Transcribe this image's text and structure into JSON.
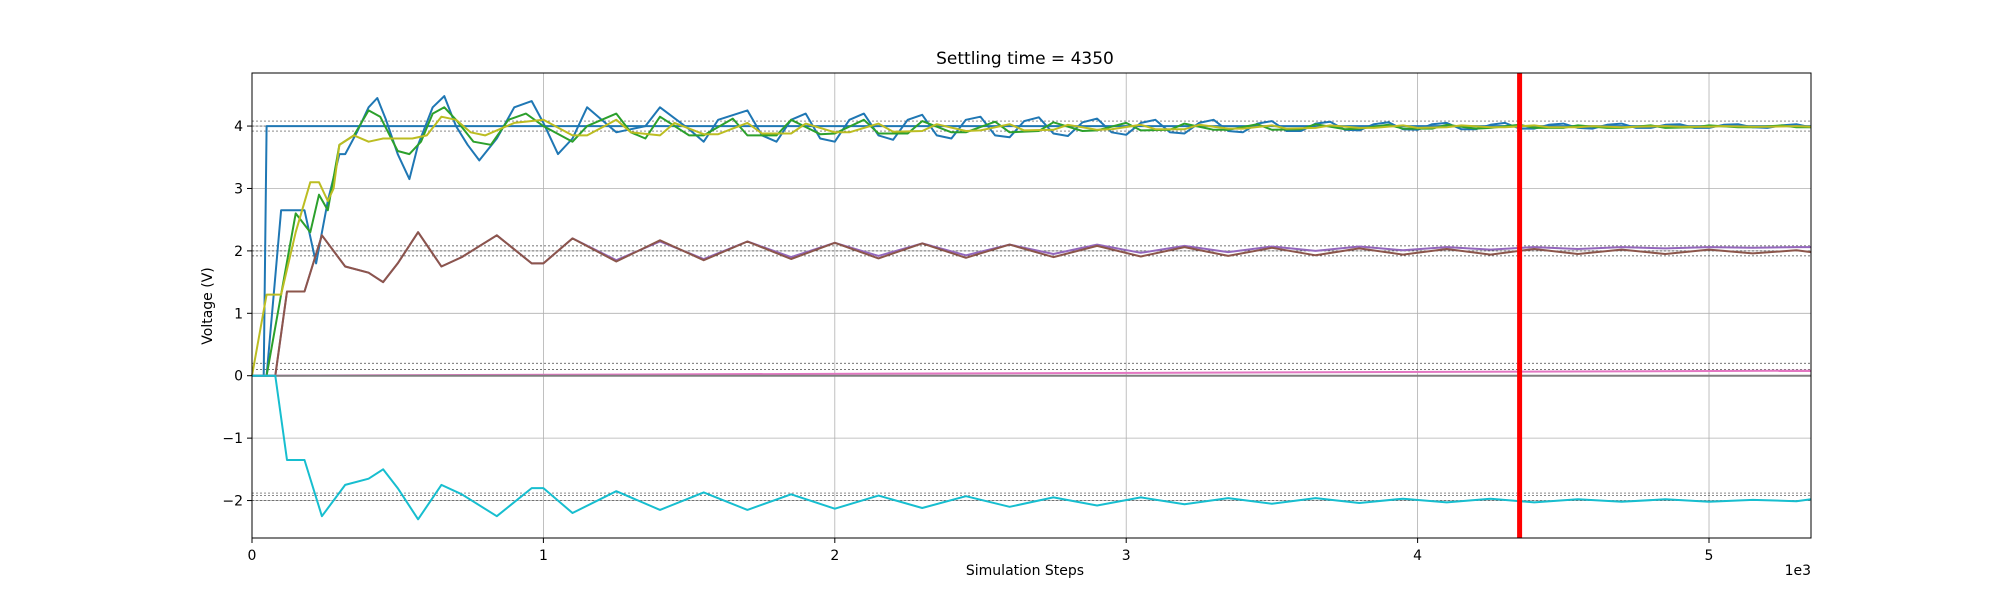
{
  "chart_data": {
    "type": "line",
    "title": "Settling time = 4350",
    "xlabel": "Simulation Steps",
    "ylabel": "Voltage (V)",
    "x_offset_label": "1e3",
    "xlim": [
      0,
      5350
    ],
    "ylim": [
      -2.6,
      4.85
    ],
    "x_ticks": [
      0,
      1000,
      2000,
      3000,
      4000,
      5000
    ],
    "x_tick_labels": [
      "0",
      "1",
      "2",
      "3",
      "4",
      "5"
    ],
    "y_ticks": [
      -2,
      -1,
      0,
      1,
      2,
      3,
      4
    ],
    "y_tick_labels": [
      "−2",
      "−1",
      "0",
      "1",
      "2",
      "3",
      "4"
    ],
    "grid": true,
    "settling_time": 4350,
    "settling_marker_color": "#ff0000",
    "tolerance_bands": [
      4.08,
      4.0,
      3.92,
      2.08,
      2.0,
      1.92,
      0.2,
      0.1,
      0.0,
      -1.88,
      -1.92,
      -2.0
    ],
    "series": [
      {
        "color": "#1f77b4",
        "x": [
          0,
          40,
          50,
          5350
        ],
        "y": [
          0,
          0,
          4,
          4
        ]
      },
      {
        "color": "#1f77b4",
        "x": [
          0,
          50,
          100,
          170,
          180,
          220,
          260,
          300,
          320,
          360,
          400,
          430,
          460,
          500,
          540,
          570,
          620,
          660,
          700,
          740,
          780,
          840,
          900,
          960,
          1000,
          1050,
          1100,
          1150,
          1250,
          1350,
          1400,
          1500,
          1550,
          1600,
          1700,
          1750,
          1800,
          1850,
          1900,
          1950,
          2000,
          2050,
          2100,
          2150,
          2200,
          2250,
          2300,
          2350,
          2400,
          2450,
          2500,
          2550,
          2600,
          2650,
          2700,
          2750,
          2800,
          2850,
          2900,
          2950,
          3000,
          3050,
          3100,
          3150,
          3200,
          3250,
          3300,
          3350,
          3400,
          3450,
          3500,
          3550,
          3600,
          3650,
          3700,
          3750,
          3800,
          3850,
          3900,
          3950,
          4000,
          4050,
          4100,
          4150,
          4200,
          4250,
          4300,
          4350,
          4400,
          4450,
          4500,
          4550,
          4600,
          4650,
          4700,
          4750,
          4800,
          4850,
          4900,
          4950,
          5000,
          5050,
          5100,
          5150,
          5200,
          5250,
          5300,
          5350
        ],
        "y": [
          0,
          0,
          2.65,
          2.65,
          2.65,
          1.8,
          2.8,
          3.55,
          3.55,
          3.9,
          4.3,
          4.45,
          4.1,
          3.55,
          3.15,
          3.7,
          4.3,
          4.48,
          4.0,
          3.7,
          3.45,
          3.8,
          4.3,
          4.4,
          4.05,
          3.55,
          3.8,
          4.3,
          3.9,
          4.0,
          4.3,
          3.95,
          3.75,
          4.1,
          4.25,
          3.85,
          3.75,
          4.1,
          4.2,
          3.8,
          3.75,
          4.1,
          4.2,
          3.85,
          3.78,
          4.1,
          4.18,
          3.85,
          3.8,
          4.1,
          4.15,
          3.85,
          3.82,
          4.08,
          4.14,
          3.88,
          3.84,
          4.06,
          4.12,
          3.9,
          3.86,
          4.05,
          4.1,
          3.9,
          3.88,
          4.05,
          4.1,
          3.92,
          3.9,
          4.04,
          4.08,
          3.92,
          3.92,
          4.04,
          4.07,
          3.94,
          3.93,
          4.03,
          4.06,
          3.95,
          3.94,
          4.03,
          4.05,
          3.95,
          3.95,
          4.02,
          4.05,
          3.96,
          3.96,
          4.02,
          4.04,
          3.97,
          3.96,
          4.02,
          4.04,
          3.97,
          3.97,
          4.02,
          4.03,
          3.97,
          3.97,
          4.02,
          4.03,
          3.98,
          3.97,
          4.01,
          4.03,
          3.98
        ]
      },
      {
        "color": "#2ca02c",
        "x": [
          0,
          50,
          100,
          150,
          200,
          230,
          260,
          300,
          350,
          400,
          440,
          500,
          540,
          580,
          620,
          660,
          700,
          760,
          820,
          880,
          940,
          1000,
          1100,
          1150,
          1250,
          1300,
          1350,
          1400,
          1500,
          1550,
          1650,
          1700,
          1800,
          1850,
          1950,
          2000,
          2100,
          2150,
          2250,
          2300,
          2400,
          2450,
          2550,
          2600,
          2700,
          2750,
          2850,
          2900,
          3000,
          3050,
          3150,
          3200,
          3300,
          3350,
          3450,
          3500,
          3600,
          3650,
          3750,
          3800,
          3900,
          3950,
          4050,
          4100,
          4200,
          4250,
          4350,
          4400,
          4500,
          4550,
          4650,
          4700,
          4800,
          4850,
          4950,
          5000,
          5100,
          5150,
          5250,
          5300,
          5350
        ],
        "y": [
          0,
          0,
          1.3,
          2.6,
          2.3,
          2.9,
          2.65,
          3.7,
          3.85,
          4.25,
          4.15,
          3.6,
          3.55,
          3.75,
          4.2,
          4.3,
          4.1,
          3.75,
          3.7,
          4.1,
          4.2,
          4.0,
          3.75,
          4.0,
          4.2,
          3.9,
          3.8,
          4.15,
          3.85,
          3.85,
          4.12,
          3.85,
          3.85,
          4.1,
          3.87,
          3.88,
          4.1,
          3.88,
          3.88,
          4.08,
          3.9,
          3.9,
          4.07,
          3.9,
          3.92,
          4.06,
          3.92,
          3.93,
          4.05,
          3.93,
          3.94,
          4.04,
          3.94,
          3.94,
          4.03,
          3.94,
          3.95,
          4.03,
          3.95,
          3.96,
          4.02,
          3.96,
          3.96,
          4.02,
          3.96,
          3.97,
          4.02,
          3.97,
          3.97,
          4.01,
          3.97,
          3.97,
          4.01,
          3.97,
          3.98,
          4.01,
          3.98,
          3.98,
          4.01,
          3.98,
          3.98
        ]
      },
      {
        "color": "#bcbd22",
        "x": [
          0,
          50,
          100,
          150,
          200,
          230,
          260,
          280,
          300,
          350,
          400,
          450,
          500,
          550,
          600,
          650,
          700,
          750,
          800,
          900,
          1000,
          1100,
          1150,
          1250,
          1300,
          1400,
          1450,
          1550,
          1600,
          1700,
          1750,
          1850,
          1900,
          2000,
          2050,
          2150,
          2200,
          2300,
          2350,
          2450,
          2500,
          2600,
          2650,
          2750,
          2800,
          2900,
          2950,
          3050,
          3100,
          3200,
          3250,
          3350,
          3400,
          3500,
          3550,
          3650,
          3700,
          3800,
          3850,
          3950,
          4000,
          4100,
          4150,
          4250,
          4300,
          4400,
          4450,
          4550,
          4600,
          4700,
          4750,
          4850,
          4900,
          5000,
          5050,
          5150,
          5200,
          5300,
          5350
        ],
        "y": [
          0,
          1.3,
          1.3,
          2.3,
          3.1,
          3.1,
          2.8,
          3.0,
          3.7,
          3.85,
          3.75,
          3.8,
          3.8,
          3.8,
          3.85,
          4.15,
          4.1,
          3.9,
          3.85,
          4.05,
          4.1,
          3.85,
          3.85,
          4.1,
          3.9,
          3.85,
          4.05,
          3.87,
          3.87,
          4.05,
          3.88,
          3.88,
          4.04,
          3.9,
          3.9,
          4.04,
          3.91,
          3.92,
          4.03,
          3.92,
          3.93,
          4.03,
          3.93,
          3.94,
          4.02,
          3.94,
          3.95,
          4.02,
          3.95,
          3.95,
          4.02,
          3.96,
          3.96,
          4.01,
          3.96,
          3.97,
          4.01,
          3.97,
          3.97,
          4.01,
          3.97,
          3.98,
          4.01,
          3.98,
          3.98,
          4.01,
          3.98,
          3.98,
          4.0,
          3.98,
          3.99,
          4.0,
          3.99,
          3.99,
          4.0,
          3.99,
          3.99,
          4.0,
          3.99
        ]
      },
      {
        "color": "#9467bd",
        "x": [
          0,
          80,
          120,
          180,
          240,
          320,
          400,
          450,
          500,
          570,
          650,
          720,
          840,
          960,
          1000,
          1100,
          1250,
          1400,
          1550,
          1700,
          1850,
          2000,
          2150,
          2300,
          2450,
          2600,
          2750,
          2900,
          3050,
          3200,
          3350,
          3500,
          3650,
          3800,
          3950,
          4100,
          4250,
          4400,
          4550,
          4700,
          4850,
          5000,
          5150,
          5300,
          5350
        ],
        "y": [
          0,
          0,
          1.35,
          1.35,
          2.25,
          1.75,
          1.65,
          1.5,
          1.8,
          2.3,
          1.75,
          1.9,
          2.25,
          1.8,
          1.8,
          2.2,
          1.85,
          2.15,
          1.87,
          2.15,
          1.9,
          2.13,
          1.92,
          2.12,
          1.93,
          2.1,
          1.95,
          2.1,
          1.97,
          2.08,
          1.98,
          2.07,
          2.0,
          2.07,
          2.01,
          2.06,
          2.02,
          2.06,
          2.03,
          2.06,
          2.04,
          2.06,
          2.05,
          2.06,
          2.06
        ]
      },
      {
        "color": "#8c564b",
        "x": [
          0,
          80,
          120,
          180,
          240,
          320,
          400,
          450,
          500,
          570,
          650,
          720,
          840,
          960,
          1000,
          1100,
          1250,
          1400,
          1550,
          1700,
          1850,
          2000,
          2150,
          2300,
          2450,
          2600,
          2750,
          2900,
          3050,
          3200,
          3350,
          3500,
          3650,
          3800,
          3950,
          4100,
          4250,
          4400,
          4550,
          4700,
          4850,
          5000,
          5150,
          5300,
          5350
        ],
        "y": [
          0,
          0,
          1.35,
          1.35,
          2.25,
          1.75,
          1.65,
          1.5,
          1.8,
          2.3,
          1.75,
          1.9,
          2.25,
          1.8,
          1.8,
          2.2,
          1.83,
          2.17,
          1.85,
          2.15,
          1.87,
          2.13,
          1.88,
          2.12,
          1.89,
          2.1,
          1.9,
          2.08,
          1.91,
          2.06,
          1.92,
          2.05,
          1.93,
          2.04,
          1.94,
          2.03,
          1.94,
          2.03,
          1.95,
          2.02,
          1.95,
          2.02,
          1.96,
          2.01,
          1.98
        ]
      },
      {
        "color": "#e377c2",
        "x": [
          0,
          5350
        ],
        "y": [
          0,
          0.08
        ]
      },
      {
        "color": "#7f7f7f",
        "x": [
          0,
          5350
        ],
        "y": [
          0,
          0.0
        ]
      },
      {
        "color": "#17becf",
        "x": [
          0,
          80,
          120,
          180,
          240,
          320,
          400,
          450,
          500,
          570,
          650,
          720,
          840,
          960,
          1000,
          1100,
          1250,
          1400,
          1550,
          1700,
          1850,
          2000,
          2150,
          2300,
          2450,
          2600,
          2750,
          2900,
          3050,
          3200,
          3350,
          3500,
          3650,
          3800,
          3950,
          4100,
          4250,
          4400,
          4550,
          4700,
          4850,
          5000,
          5150,
          5300,
          5350
        ],
        "y": [
          0,
          0,
          -1.35,
          -1.35,
          -2.25,
          -1.75,
          -1.65,
          -1.5,
          -1.8,
          -2.3,
          -1.75,
          -1.9,
          -2.25,
          -1.8,
          -1.8,
          -2.2,
          -1.85,
          -2.15,
          -1.87,
          -2.15,
          -1.9,
          -2.13,
          -1.92,
          -2.12,
          -1.93,
          -2.1,
          -1.95,
          -2.08,
          -1.95,
          -2.06,
          -1.96,
          -2.05,
          -1.96,
          -2.04,
          -1.97,
          -2.03,
          -1.97,
          -2.03,
          -1.98,
          -2.02,
          -1.98,
          -2.02,
          -1.99,
          -2.01,
          -1.98
        ]
      }
    ]
  }
}
